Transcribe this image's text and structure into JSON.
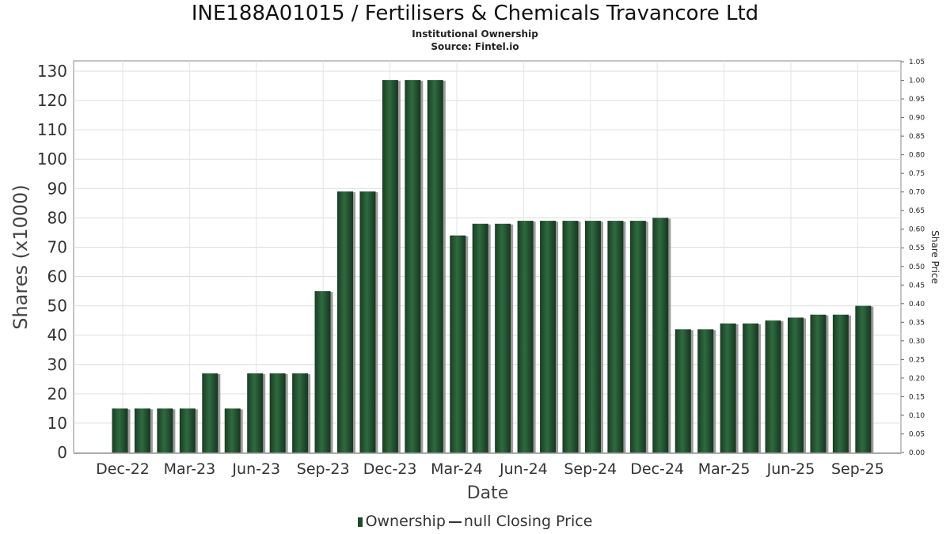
{
  "chart_data": {
    "type": "bar",
    "title": "INE188A01015 / Fertilisers & Chemicals Travancore Ltd",
    "subtitle": "Institutional Ownership",
    "source": "Source: Fintel.io",
    "xlabel": "Date",
    "ylabel": "Shares (x1000)",
    "y2label": "Share Price",
    "ylim": [
      0,
      130
    ],
    "y2lim": [
      0,
      1.05
    ],
    "y_ticks": [
      0,
      10,
      20,
      30,
      40,
      50,
      60,
      70,
      80,
      90,
      100,
      110,
      120,
      130
    ],
    "y2_ticks": [
      "0.00",
      "0.05",
      "0.10",
      "0.15",
      "0.20",
      "0.25",
      "0.30",
      "0.35",
      "0.40",
      "0.45",
      "0.50",
      "0.55",
      "0.60",
      "0.65",
      "0.70",
      "0.75",
      "0.80",
      "0.85",
      "0.90",
      "0.95",
      "1.00",
      "1.05"
    ],
    "x_tick_labels": [
      "Dec-22",
      "Mar-23",
      "Jun-23",
      "Sep-23",
      "Dec-23",
      "Mar-24",
      "Jun-24",
      "Sep-24",
      "Dec-24",
      "Mar-25",
      "Jun-25",
      "Sep-25"
    ],
    "grid": true,
    "series": [
      {
        "name": "Ownership",
        "color": "#1f4a2c",
        "values": [
          15,
          15,
          15,
          15,
          27,
          15,
          27,
          27,
          27,
          55,
          89,
          89,
          127,
          127,
          127,
          74,
          78,
          78,
          79,
          79,
          79,
          79,
          79,
          79,
          80,
          42,
          42,
          44,
          44,
          45,
          46,
          47,
          47,
          50
        ]
      },
      {
        "name": "null Closing Price",
        "color": "#333333",
        "values": []
      }
    ],
    "legend_position": "bottom"
  }
}
